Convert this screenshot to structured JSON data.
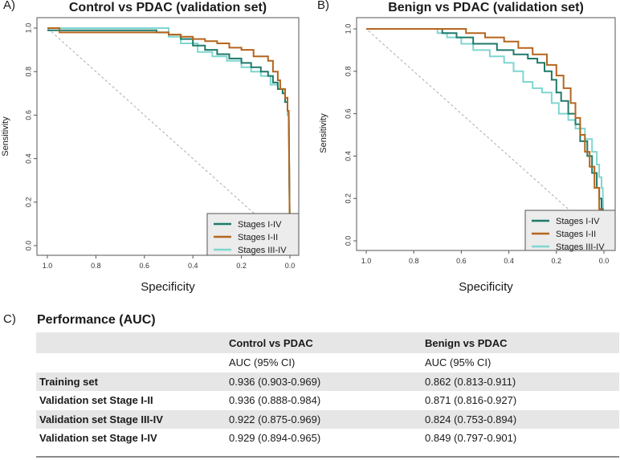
{
  "panel_labels": {
    "a": "A)",
    "b": "B)",
    "c": "C)"
  },
  "colors": {
    "stage_i_iv": "#1f7a6a",
    "stage_i_ii": "#b5651d",
    "stage_iii_iv": "#7fd6d0",
    "diagonal": "#a9a9a9"
  },
  "chart_data": [
    {
      "type": "line",
      "title": "Control vs PDAC (validation set)",
      "xlabel": "Specificity",
      "ylabel": "Sensitivity",
      "xlim": [
        0,
        1
      ],
      "ylim": [
        0,
        1
      ],
      "x_ticks": [
        "0.0",
        "0.2",
        "0.4",
        "0.6",
        "0.8",
        "1.0"
      ],
      "y_ticks": [
        "0.0",
        "0.2",
        "0.4",
        "0.6",
        "0.8",
        "1.0"
      ],
      "reference_line": "diagonal",
      "legend_position": "bottom-right",
      "series": [
        {
          "name": "Stages I-IV",
          "color_key": "stage_i_iv",
          "x": [
            0,
            0.005,
            0.01,
            0.01,
            0.02,
            0.02,
            0.03,
            0.03,
            0.05,
            0.05,
            0.07,
            0.07,
            0.09,
            0.09,
            0.12,
            0.12,
            0.16,
            0.16,
            0.2,
            0.2,
            0.25,
            0.25,
            0.3,
            0.3,
            0.35,
            0.35,
            0.4,
            0.4,
            0.45,
            0.45,
            0.5,
            0.5,
            0.55,
            0.55,
            1.0
          ],
          "y": [
            0,
            0.62,
            0.62,
            0.66,
            0.66,
            0.7,
            0.7,
            0.72,
            0.72,
            0.75,
            0.75,
            0.78,
            0.78,
            0.8,
            0.8,
            0.82,
            0.82,
            0.84,
            0.84,
            0.86,
            0.86,
            0.88,
            0.88,
            0.9,
            0.9,
            0.92,
            0.92,
            0.95,
            0.95,
            0.97,
            0.97,
            0.98,
            0.98,
            0.99,
            0.99
          ]
        },
        {
          "name": "Stages I-II",
          "color_key": "stage_i_ii",
          "x": [
            0,
            0.005,
            0.01,
            0.01,
            0.02,
            0.02,
            0.04,
            0.04,
            0.05,
            0.05,
            0.07,
            0.07,
            0.09,
            0.09,
            0.15,
            0.15,
            0.2,
            0.2,
            0.25,
            0.25,
            0.3,
            0.3,
            0.35,
            0.35,
            0.4,
            0.4,
            0.45,
            0.45,
            0.5,
            0.5,
            0.95,
            0.95,
            1.0
          ],
          "y": [
            0,
            0.62,
            0.62,
            0.68,
            0.68,
            0.72,
            0.72,
            0.76,
            0.76,
            0.8,
            0.8,
            0.85,
            0.85,
            0.87,
            0.87,
            0.9,
            0.9,
            0.91,
            0.91,
            0.93,
            0.93,
            0.94,
            0.94,
            0.95,
            0.95,
            0.96,
            0.96,
            0.97,
            0.97,
            0.98,
            0.98,
            1.0,
            1.0
          ]
        },
        {
          "name": "Stages III-IV",
          "color_key": "stage_iii_iv",
          "x": [
            0,
            0.005,
            0.01,
            0.01,
            0.02,
            0.02,
            0.03,
            0.03,
            0.05,
            0.05,
            0.08,
            0.08,
            0.12,
            0.12,
            0.16,
            0.16,
            0.2,
            0.2,
            0.26,
            0.26,
            0.32,
            0.32,
            0.38,
            0.38,
            0.45,
            0.45,
            0.5,
            0.5,
            1.0
          ],
          "y": [
            0,
            0.6,
            0.6,
            0.66,
            0.66,
            0.7,
            0.7,
            0.72,
            0.72,
            0.74,
            0.74,
            0.78,
            0.78,
            0.8,
            0.8,
            0.82,
            0.82,
            0.85,
            0.85,
            0.87,
            0.87,
            0.89,
            0.89,
            0.93,
            0.93,
            0.96,
            0.96,
            1.0,
            1.0
          ]
        }
      ]
    },
    {
      "type": "line",
      "title": "Benign vs PDAC (validation set)",
      "xlabel": "Specificity",
      "ylabel": "Sensitivity",
      "xlim": [
        0,
        1
      ],
      "ylim": [
        0,
        1
      ],
      "x_ticks": [
        "0.0",
        "0.2",
        "0.4",
        "0.6",
        "0.8",
        "1.0"
      ],
      "y_ticks": [
        "0.0",
        "0.2",
        "0.4",
        "0.6",
        "0.8",
        "1.0"
      ],
      "reference_line": "diagonal",
      "legend_position": "bottom-right",
      "series": [
        {
          "name": "Stages I-IV",
          "color_key": "stage_i_iv",
          "x": [
            0,
            0.005,
            0.01,
            0.01,
            0.02,
            0.02,
            0.03,
            0.03,
            0.05,
            0.05,
            0.07,
            0.07,
            0.1,
            0.1,
            0.12,
            0.12,
            0.15,
            0.15,
            0.18,
            0.18,
            0.2,
            0.2,
            0.22,
            0.22,
            0.25,
            0.25,
            0.28,
            0.28,
            0.32,
            0.32,
            0.38,
            0.38,
            0.45,
            0.45,
            0.55,
            0.55,
            0.62,
            0.62,
            0.68,
            0.68,
            1.0
          ],
          "y": [
            0,
            0.15,
            0.15,
            0.2,
            0.2,
            0.25,
            0.25,
            0.32,
            0.32,
            0.4,
            0.4,
            0.47,
            0.47,
            0.55,
            0.55,
            0.6,
            0.6,
            0.66,
            0.66,
            0.7,
            0.7,
            0.76,
            0.76,
            0.8,
            0.8,
            0.84,
            0.84,
            0.86,
            0.86,
            0.88,
            0.88,
            0.9,
            0.9,
            0.93,
            0.93,
            0.96,
            0.96,
            0.98,
            0.98,
            1.0,
            1.0
          ]
        },
        {
          "name": "Stages I-II",
          "color_key": "stage_i_ii",
          "x": [
            0,
            0.005,
            0.01,
            0.01,
            0.02,
            0.02,
            0.04,
            0.04,
            0.06,
            0.06,
            0.08,
            0.08,
            0.1,
            0.1,
            0.12,
            0.12,
            0.14,
            0.14,
            0.17,
            0.17,
            0.2,
            0.2,
            0.24,
            0.24,
            0.3,
            0.3,
            0.36,
            0.36,
            0.42,
            0.42,
            0.5,
            0.5,
            0.58,
            0.58,
            1.0
          ],
          "y": [
            0,
            0.1,
            0.1,
            0.15,
            0.15,
            0.25,
            0.25,
            0.35,
            0.35,
            0.42,
            0.42,
            0.5,
            0.5,
            0.58,
            0.58,
            0.65,
            0.65,
            0.72,
            0.72,
            0.78,
            0.78,
            0.83,
            0.83,
            0.88,
            0.88,
            0.91,
            0.91,
            0.94,
            0.94,
            0.96,
            0.96,
            0.98,
            0.98,
            1.0,
            1.0
          ]
        },
        {
          "name": "Stages III-IV",
          "color_key": "stage_iii_iv",
          "x": [
            0,
            0.005,
            0.01,
            0.01,
            0.02,
            0.02,
            0.03,
            0.03,
            0.05,
            0.05,
            0.08,
            0.08,
            0.12,
            0.12,
            0.15,
            0.15,
            0.19,
            0.19,
            0.22,
            0.22,
            0.26,
            0.26,
            0.3,
            0.3,
            0.34,
            0.34,
            0.38,
            0.38,
            0.42,
            0.42,
            0.48,
            0.48,
            0.55,
            0.55,
            0.6,
            0.6,
            0.66,
            0.66,
            0.7,
            0.7,
            1.0
          ],
          "y": [
            0,
            0.25,
            0.25,
            0.3,
            0.3,
            0.36,
            0.36,
            0.42,
            0.42,
            0.48,
            0.48,
            0.53,
            0.53,
            0.57,
            0.57,
            0.6,
            0.6,
            0.65,
            0.65,
            0.7,
            0.7,
            0.72,
            0.72,
            0.75,
            0.75,
            0.8,
            0.8,
            0.84,
            0.84,
            0.87,
            0.87,
            0.9,
            0.9,
            0.93,
            0.93,
            0.96,
            0.96,
            0.98,
            0.98,
            1.0,
            1.0
          ]
        }
      ]
    }
  ],
  "performance": {
    "title": "Performance (AUC)",
    "columns": [
      "",
      "Control vs PDAC",
      "Benign vs PDAC"
    ],
    "subheader": [
      "",
      "AUC (95% CI)",
      "AUC (95% CI)"
    ],
    "rows": [
      {
        "label": "Training set",
        "control": "0.936 (0.903-0.969)",
        "benign": "0.862 (0.813-0.911)"
      },
      {
        "label": "Validation set Stage I-II",
        "control": "0.936 (0.888-0.984)",
        "benign": "0.871 (0.816-0.927)"
      },
      {
        "label": "Validation set Stage III-IV",
        "control": "0.922 (0.875-0.969)",
        "benign": "0.824 (0.753-0.894)"
      },
      {
        "label": "Validation set Stage I-IV",
        "control": "0.929 (0.894-0.965)",
        "benign": "0.849 (0.797-0.901)"
      }
    ]
  }
}
